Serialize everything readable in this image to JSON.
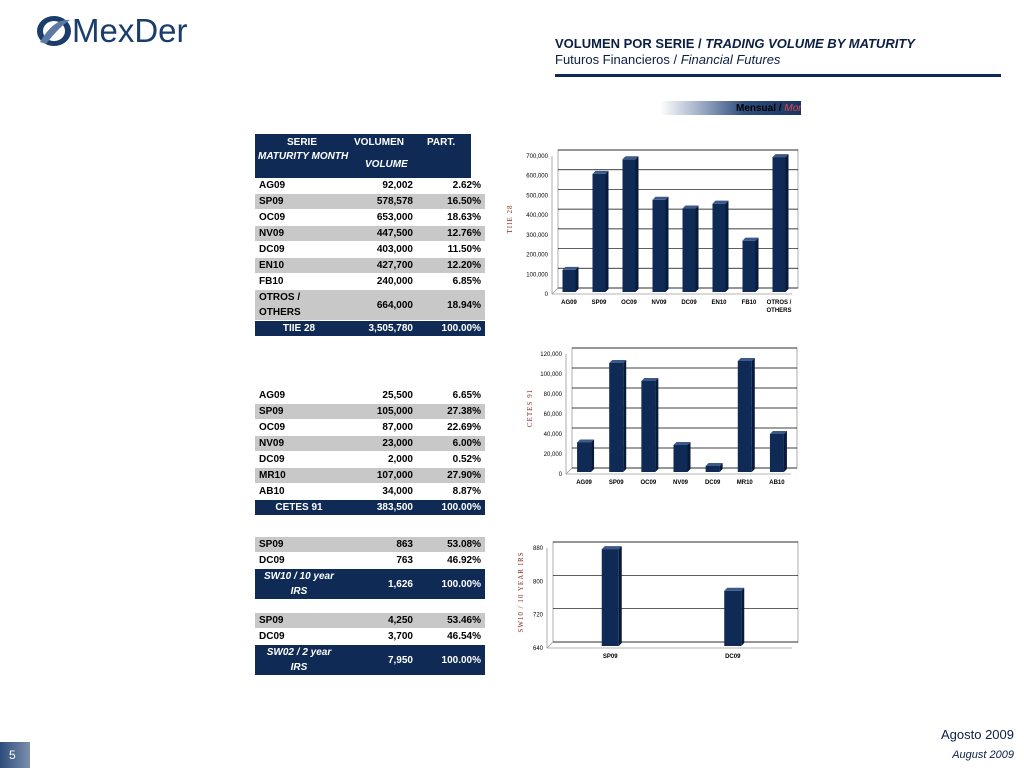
{
  "logo": {
    "text_a": "Me",
    "text_x": "x",
    "text_b": "Der"
  },
  "header": {
    "title_es": "VOLUMEN POR SERIE / ",
    "title_en": "TRADING VOLUME BY MATURITY",
    "subtitle_es": "Futuros Financieros / ",
    "subtitle_en": "Financial Futures"
  },
  "mensual": {
    "es": "Mensual / ",
    "en": "Monthly"
  },
  "table_header": {
    "serie": "SERIE",
    "maturity": "MATURITY MONTH",
    "volumen": "VOLUMEN",
    "volume": "VOLUME",
    "part": "PART."
  },
  "tables": [
    {
      "rows": [
        {
          "s": "AG09",
          "v": "92,002",
          "p": "2.62%"
        },
        {
          "s": "SP09",
          "v": "578,578",
          "p": "16.50%"
        },
        {
          "s": "OC09",
          "v": "653,000",
          "p": "18.63%"
        },
        {
          "s": "NV09",
          "v": "447,500",
          "p": "12.76%"
        },
        {
          "s": "DC09",
          "v": "403,000",
          "p": "11.50%"
        },
        {
          "s": "EN10",
          "v": "427,700",
          "p": "12.20%"
        },
        {
          "s": "FB10",
          "v": "240,000",
          "p": "6.85%"
        },
        {
          "s": "OTROS / OTHERS",
          "v": "664,000",
          "p": "18.94%"
        }
      ],
      "total": {
        "s": "TIIE 28",
        "v": "3,505,780",
        "p": "100.00%"
      }
    },
    {
      "rows": [
        {
          "s": "AG09",
          "v": "25,500",
          "p": "6.65%"
        },
        {
          "s": "SP09",
          "v": "105,000",
          "p": "27.38%"
        },
        {
          "s": "OC09",
          "v": "87,000",
          "p": "22.69%"
        },
        {
          "s": "NV09",
          "v": "23,000",
          "p": "6.00%"
        },
        {
          "s": "DC09",
          "v": "2,000",
          "p": "0.52%"
        },
        {
          "s": "MR10",
          "v": "107,000",
          "p": "27.90%"
        },
        {
          "s": "AB10",
          "v": "34,000",
          "p": "8.87%"
        }
      ],
      "total": {
        "s": "CETES 91",
        "v": "383,500",
        "p": "100.00%"
      }
    },
    {
      "rows": [
        {
          "s": "SP09",
          "v": "863",
          "p": "53.08%"
        },
        {
          "s": "DC09",
          "v": "763",
          "p": "46.92%"
        }
      ],
      "total": {
        "s": "SW10 / 10 year IRS",
        "v": "1,626",
        "p": "100.00%"
      }
    },
    {
      "rows": [
        {
          "s": "SP09",
          "v": "4,250",
          "p": "53.46%"
        },
        {
          "s": "DC09",
          "v": "3,700",
          "p": "46.54%"
        }
      ],
      "total": {
        "s": "SW02 / 2 year IRS",
        "v": "7,950",
        "p": "100.00%"
      }
    }
  ],
  "chart_data": [
    {
      "type": "bar",
      "ylabel": "TIIE 28",
      "categories": [
        "AG09",
        "SP09",
        "OC09",
        "NV09",
        "DC09",
        "EN10",
        "FB10",
        "OTROS / OTHERS"
      ],
      "values": [
        92002,
        578578,
        653000,
        447500,
        403000,
        427700,
        240000,
        664000
      ],
      "ylim": [
        0,
        700000
      ],
      "yticks": [
        0,
        100000,
        200000,
        300000,
        400000,
        500000,
        600000,
        700000
      ],
      "ytick_labels": [
        "0",
        "100,000",
        "200,000",
        "300,000",
        "400,000",
        "500,000",
        "600,000",
        "700,000"
      ],
      "grid": true
    },
    {
      "type": "bar",
      "ylabel": "CETES 91",
      "categories": [
        "AG09",
        "SP09",
        "OC09",
        "NV09",
        "DC09",
        "MR10",
        "AB10"
      ],
      "values": [
        25500,
        105000,
        87000,
        23000,
        2000,
        107000,
        34000
      ],
      "ylim": [
        0,
        120000
      ],
      "yticks": [
        0,
        20000,
        40000,
        60000,
        80000,
        100000,
        120000
      ],
      "ytick_labels": [
        "0",
        "20,000",
        "40,000",
        "60,000",
        "80,000",
        "100,000",
        "120,000"
      ],
      "grid": true
    },
    {
      "type": "bar",
      "ylabel": "SW10 / 10 YEAR IRS",
      "categories": [
        "SP09",
        "DC09"
      ],
      "values": [
        863,
        763
      ],
      "ylim": [
        640,
        880
      ],
      "yticks": [
        640,
        720,
        800,
        880
      ],
      "ytick_labels": [
        "640",
        "720",
        "800",
        "880"
      ],
      "grid": true
    }
  ],
  "footer": {
    "es": "Agosto 2009",
    "en": "August 2009",
    "page": "5"
  }
}
